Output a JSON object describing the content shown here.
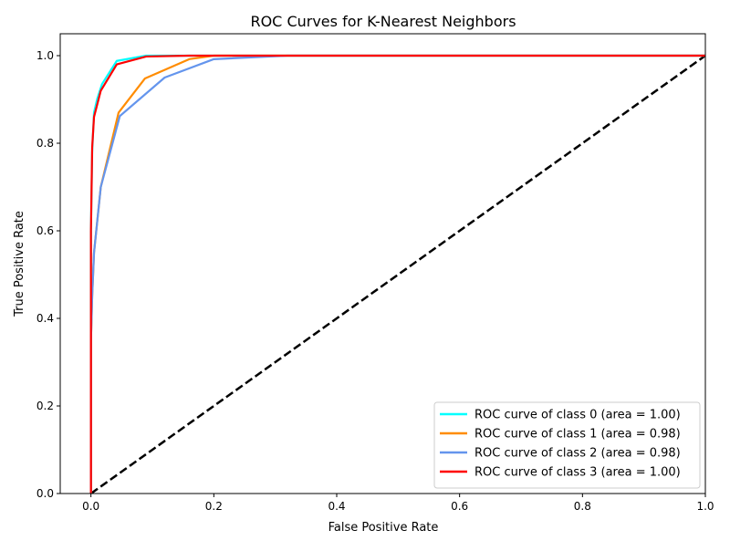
{
  "chart_data": {
    "type": "line",
    "title": "ROC Curves for K-Nearest Neighbors",
    "xlabel": "False Positive Rate",
    "ylabel": "True Positive Rate",
    "xlim": [
      -0.05,
      1.0
    ],
    "ylim": [
      0.0,
      1.05
    ],
    "x_ticks": [
      "0.0",
      "0.2",
      "0.4",
      "0.6",
      "0.8",
      "1.0"
    ],
    "x_tick_values": [
      0.0,
      0.2,
      0.4,
      0.6,
      0.8,
      1.0
    ],
    "y_ticks": [
      "0.0",
      "0.2",
      "0.4",
      "0.6",
      "0.8",
      "1.0"
    ],
    "y_tick_values": [
      0.0,
      0.2,
      0.4,
      0.6,
      0.8,
      1.0
    ],
    "grid": false,
    "legend_position": "lower right",
    "diagonal": {
      "x": [
        0.0,
        1.0
      ],
      "y": [
        0.0,
        1.0
      ],
      "color": "#000000",
      "style": "dashed"
    },
    "series": [
      {
        "name": "ROC curve of class 0 (area = 1.00)",
        "color": "#00ffff",
        "x": [
          0.0,
          0.0,
          0.002,
          0.005,
          0.01,
          0.018,
          0.042,
          0.09,
          0.16,
          1.0
        ],
        "y": [
          0.0,
          0.6,
          0.78,
          0.87,
          0.9,
          0.935,
          0.988,
          1.0,
          1.0,
          1.0
        ]
      },
      {
        "name": "ROC curve of class 1 (area = 0.98)",
        "color": "#ff8c00",
        "x": [
          0.0,
          0.0,
          0.002,
          0.005,
          0.016,
          0.045,
          0.088,
          0.16,
          0.2,
          1.0
        ],
        "y": [
          0.0,
          0.35,
          0.45,
          0.55,
          0.7,
          0.87,
          0.948,
          0.992,
          1.0,
          1.0
        ]
      },
      {
        "name": "ROC curve of class 2 (area = 0.98)",
        "color": "#6495ed",
        "x": [
          0.0,
          0.0,
          0.002,
          0.005,
          0.016,
          0.047,
          0.12,
          0.2,
          0.32,
          1.0
        ],
        "y": [
          0.0,
          0.35,
          0.45,
          0.55,
          0.7,
          0.862,
          0.95,
          0.992,
          1.0,
          1.0
        ]
      },
      {
        "name": "ROC curve of class 3 (area = 1.00)",
        "color": "#ff0000",
        "x": [
          0.0,
          0.0,
          0.002,
          0.005,
          0.016,
          0.042,
          0.09,
          0.16,
          1.0
        ],
        "y": [
          0.0,
          0.6,
          0.79,
          0.86,
          0.92,
          0.98,
          0.998,
          1.0,
          1.0
        ]
      }
    ]
  }
}
